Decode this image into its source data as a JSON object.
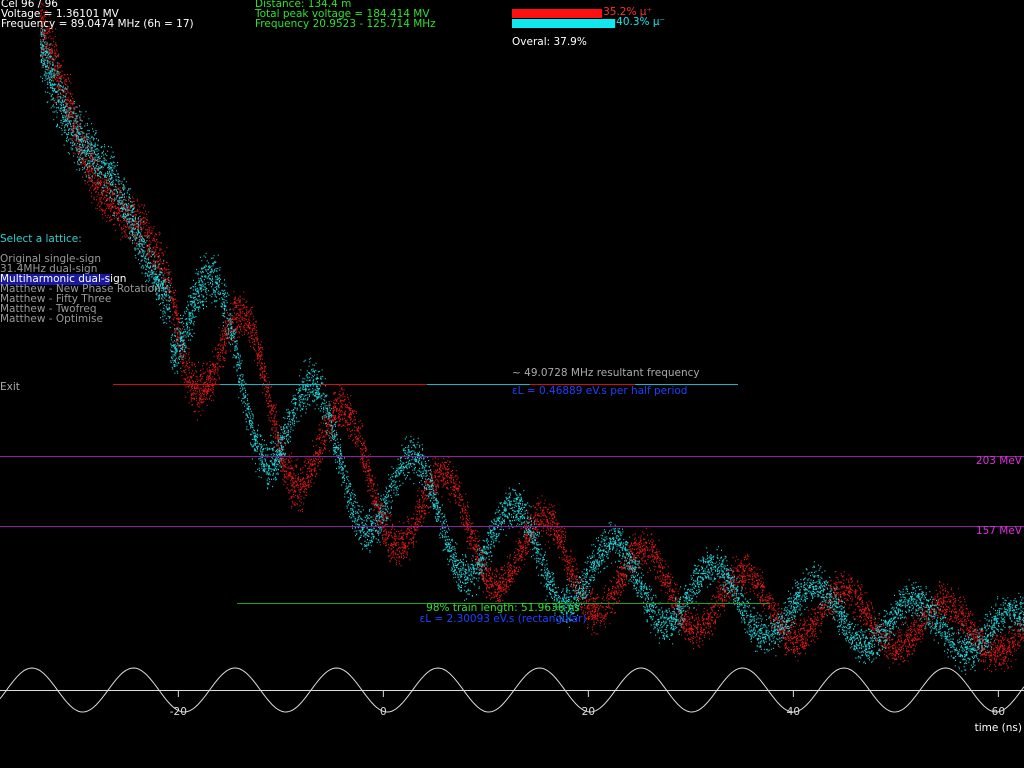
{
  "status": {
    "cell": "Cel 96 / 96",
    "voltage": "Voltage = 1.36101 MV",
    "frequency": "Frequency = 89.0474 MHz  (6h = 17)"
  },
  "summary": {
    "distance": "Distance: 134.4 m",
    "total_voltage": "Total peak voltage = 184.414 MV",
    "frequency_range": "Frequency 20.9523 - 125.714 MHz"
  },
  "transmission": {
    "bars": [
      {
        "label": "35.2% μ⁺",
        "value": 35.2,
        "color": "#ff1010"
      },
      {
        "label": "40.3% μ⁻",
        "value": 40.3,
        "color": "#10e8f0"
      }
    ],
    "overall": "Overal: 37.9%"
  },
  "menu": {
    "heading": "Select a lattice:",
    "options": [
      "Original single-sign",
      "31.4MHz dual-sign",
      "Multiharmonic dual-sign",
      "Matthew - New Phase Rotation",
      "Matthew - Fifty Three",
      "Matthew - Twofreq",
      "Matthew - Optimise"
    ],
    "selected": 2,
    "exit": "Exit"
  },
  "annotations": {
    "resultant": "~ 49.0728 MHz resultant frequency",
    "emittance_half": "εL = 0.46889 eV.s per half period",
    "energy_high": "203 MeV",
    "energy_low": "157 MeV",
    "train_length": "98% train length: 51.9636 ns",
    "emittance_rect": "εL = 2.30093 eV.s (rectangular)"
  },
  "time_axis": {
    "label": "time (ns)",
    "xlim": [
      -37.4,
      62.5
    ],
    "ticks": [
      -20,
      0,
      20,
      40,
      60
    ]
  }
}
